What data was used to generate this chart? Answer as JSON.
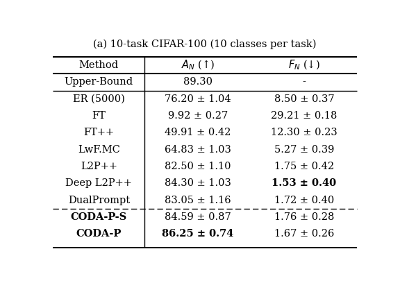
{
  "title": "(a) 10-task CIFAR-100 (10 classes per task)",
  "col_headers": [
    "Method",
    "A_N (up)",
    "F_N (down)"
  ],
  "rows": [
    {
      "method": "Upper-Bound",
      "an": "89.30",
      "fn": "-",
      "bold_method": false,
      "bold_an": false,
      "bold_fn": false,
      "upper_bound": true,
      "dashed_above": false
    },
    {
      "method": "ER (5000)",
      "an": "76.20 ± 1.04",
      "fn": "8.50 ± 0.37",
      "bold_method": false,
      "bold_an": false,
      "bold_fn": false,
      "upper_bound": false,
      "dashed_above": false
    },
    {
      "method": "FT",
      "an": "9.92 ± 0.27",
      "fn": "29.21 ± 0.18",
      "bold_method": false,
      "bold_an": false,
      "bold_fn": false,
      "upper_bound": false,
      "dashed_above": false
    },
    {
      "method": "FT++",
      "an": "49.91 ± 0.42",
      "fn": "12.30 ± 0.23",
      "bold_method": false,
      "bold_an": false,
      "bold_fn": false,
      "upper_bound": false,
      "dashed_above": false
    },
    {
      "method": "LwF.MC",
      "an": "64.83 ± 1.03",
      "fn": "5.27 ± 0.39",
      "bold_method": false,
      "bold_an": false,
      "bold_fn": false,
      "upper_bound": false,
      "dashed_above": false
    },
    {
      "method": "L2P++",
      "an": "82.50 ± 1.10",
      "fn": "1.75 ± 0.42",
      "bold_method": false,
      "bold_an": false,
      "bold_fn": false,
      "upper_bound": false,
      "dashed_above": false
    },
    {
      "method": "Deep L2P++",
      "an": "84.30 ± 1.03",
      "fn": "1.53 ± 0.40",
      "bold_method": false,
      "bold_an": false,
      "bold_fn": true,
      "upper_bound": false,
      "dashed_above": false
    },
    {
      "method": "DualPrompt",
      "an": "83.05 ± 1.16",
      "fn": "1.72 ± 0.40",
      "bold_method": false,
      "bold_an": false,
      "bold_fn": false,
      "upper_bound": false,
      "dashed_above": false
    },
    {
      "method": "CODA-P-S",
      "an": "84.59 ± 0.87",
      "fn": "1.76 ± 0.28",
      "bold_method": true,
      "bold_an": false,
      "bold_fn": false,
      "upper_bound": false,
      "dashed_above": true
    },
    {
      "method": "CODA-P",
      "an": "86.25 ± 0.74",
      "fn": "1.67 ± 0.26",
      "bold_method": true,
      "bold_an": true,
      "bold_fn": false,
      "upper_bound": false,
      "dashed_above": false
    }
  ],
  "bg_color": "#ffffff",
  "text_color": "#000000",
  "title_fontsize": 10.5,
  "cell_fontsize": 10.5,
  "header_fontsize": 10.5,
  "fig_width": 5.76,
  "fig_height": 4.08,
  "dpi": 100
}
